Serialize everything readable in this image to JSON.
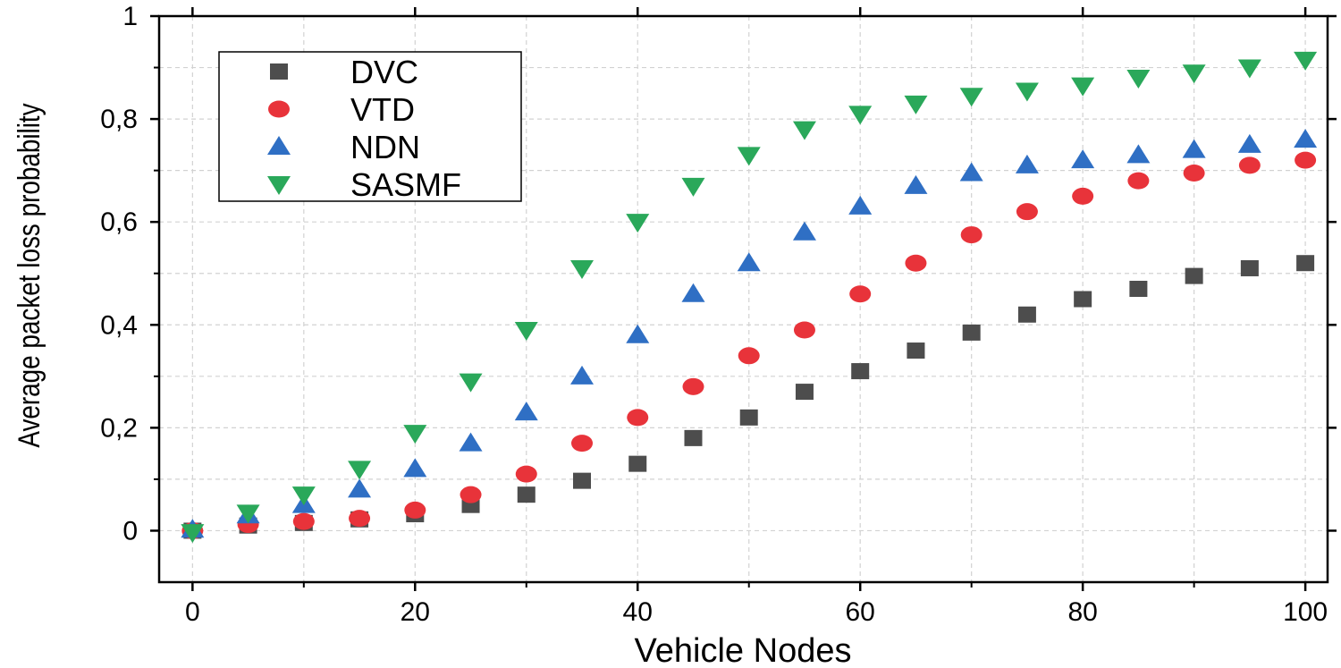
{
  "chart_data": {
    "type": "scatter",
    "title": "",
    "xlabel": "Vehicle Nodes",
    "ylabel": "Average packet loss probability",
    "xlim": [
      -3,
      102
    ],
    "ylim": [
      -0.1,
      1.0
    ],
    "x_ticks": [
      0,
      20,
      40,
      60,
      80,
      100
    ],
    "x_tick_labels": [
      "0",
      "20",
      "40",
      "60",
      "80",
      "100"
    ],
    "y_ticks": [
      0,
      0.2,
      0.4,
      0.6,
      0.8,
      1.0
    ],
    "y_tick_labels": [
      "0",
      "0,2",
      "0,4",
      "0,6",
      "0,8",
      "1"
    ],
    "grid": true,
    "legend_position": "top-left",
    "x": [
      0,
      5,
      10,
      15,
      20,
      25,
      30,
      35,
      40,
      45,
      50,
      55,
      60,
      65,
      70,
      75,
      80,
      85,
      90,
      95,
      100
    ],
    "series": [
      {
        "name": "DVC",
        "marker": "square",
        "color": "#4d4d4d",
        "values": [
          0,
          0.01,
          0.015,
          0.022,
          0.032,
          0.05,
          0.07,
          0.097,
          0.13,
          0.18,
          0.22,
          0.27,
          0.31,
          0.35,
          0.385,
          0.42,
          0.45,
          0.47,
          0.495,
          0.51,
          0.52
        ]
      },
      {
        "name": "VTD",
        "marker": "circle",
        "color": "#e8333a",
        "values": [
          0,
          0.012,
          0.018,
          0.024,
          0.04,
          0.07,
          0.11,
          0.17,
          0.22,
          0.28,
          0.34,
          0.39,
          0.46,
          0.52,
          0.575,
          0.62,
          0.65,
          0.68,
          0.695,
          0.71,
          0.72
        ]
      },
      {
        "name": "NDN",
        "marker": "triangle-up",
        "color": "#2f6fc4",
        "values": [
          0.002,
          0.03,
          0.05,
          0.08,
          0.12,
          0.17,
          0.23,
          0.3,
          0.38,
          0.46,
          0.52,
          0.58,
          0.63,
          0.67,
          0.695,
          0.71,
          0.72,
          0.73,
          0.74,
          0.75,
          0.76
        ]
      },
      {
        "name": "SASMF",
        "marker": "triangle-down",
        "color": "#2aa85a",
        "values": [
          -0.003,
          0.035,
          0.07,
          0.12,
          0.19,
          0.29,
          0.39,
          0.51,
          0.6,
          0.67,
          0.73,
          0.78,
          0.81,
          0.83,
          0.845,
          0.855,
          0.865,
          0.88,
          0.89,
          0.9,
          0.915
        ]
      }
    ]
  }
}
